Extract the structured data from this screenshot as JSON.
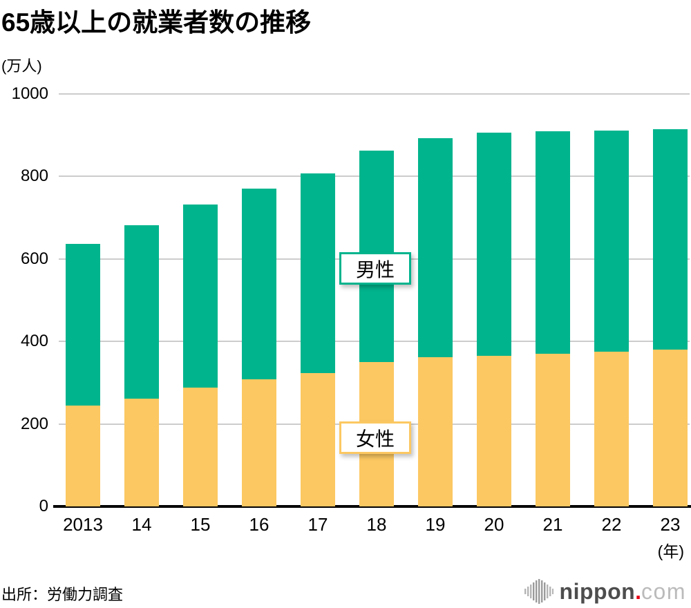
{
  "title": "65歳以上の就業者数の推移",
  "chart_data": {
    "type": "bar",
    "stacked": true,
    "title": "65歳以上の就業者数の推移",
    "unit_label": "(万人)",
    "x_suffix_label": "(年)",
    "categories": [
      "2013",
      "14",
      "15",
      "16",
      "17",
      "18",
      "19",
      "20",
      "21",
      "22",
      "23"
    ],
    "y_ticks": [
      0,
      200,
      400,
      600,
      800,
      1000
    ],
    "ylim": [
      0,
      1000
    ],
    "grid": "horizontal",
    "series": [
      {
        "name": "女性",
        "color": "#fcc862",
        "values": [
          244,
          261,
          288,
          308,
          323,
          350,
          361,
          366,
          371,
          375,
          380
        ]
      },
      {
        "name": "男性",
        "color": "#00b48d",
        "values": [
          393,
          421,
          444,
          462,
          484,
          512,
          531,
          540,
          538,
          537,
          534
        ]
      }
    ],
    "totals": [
      637,
      682,
      732,
      770,
      807,
      862,
      892,
      906,
      909,
      912,
      914
    ]
  },
  "source": "出所：労働力調査",
  "logo": {
    "icon": "soundwave-bars-icon",
    "brand_bold": "nippon",
    "brand_dot": ".",
    "brand_light": "com",
    "dot_color": "#e60012",
    "bold_color": "#4d4d4d",
    "light_color": "#bbbbbb"
  }
}
